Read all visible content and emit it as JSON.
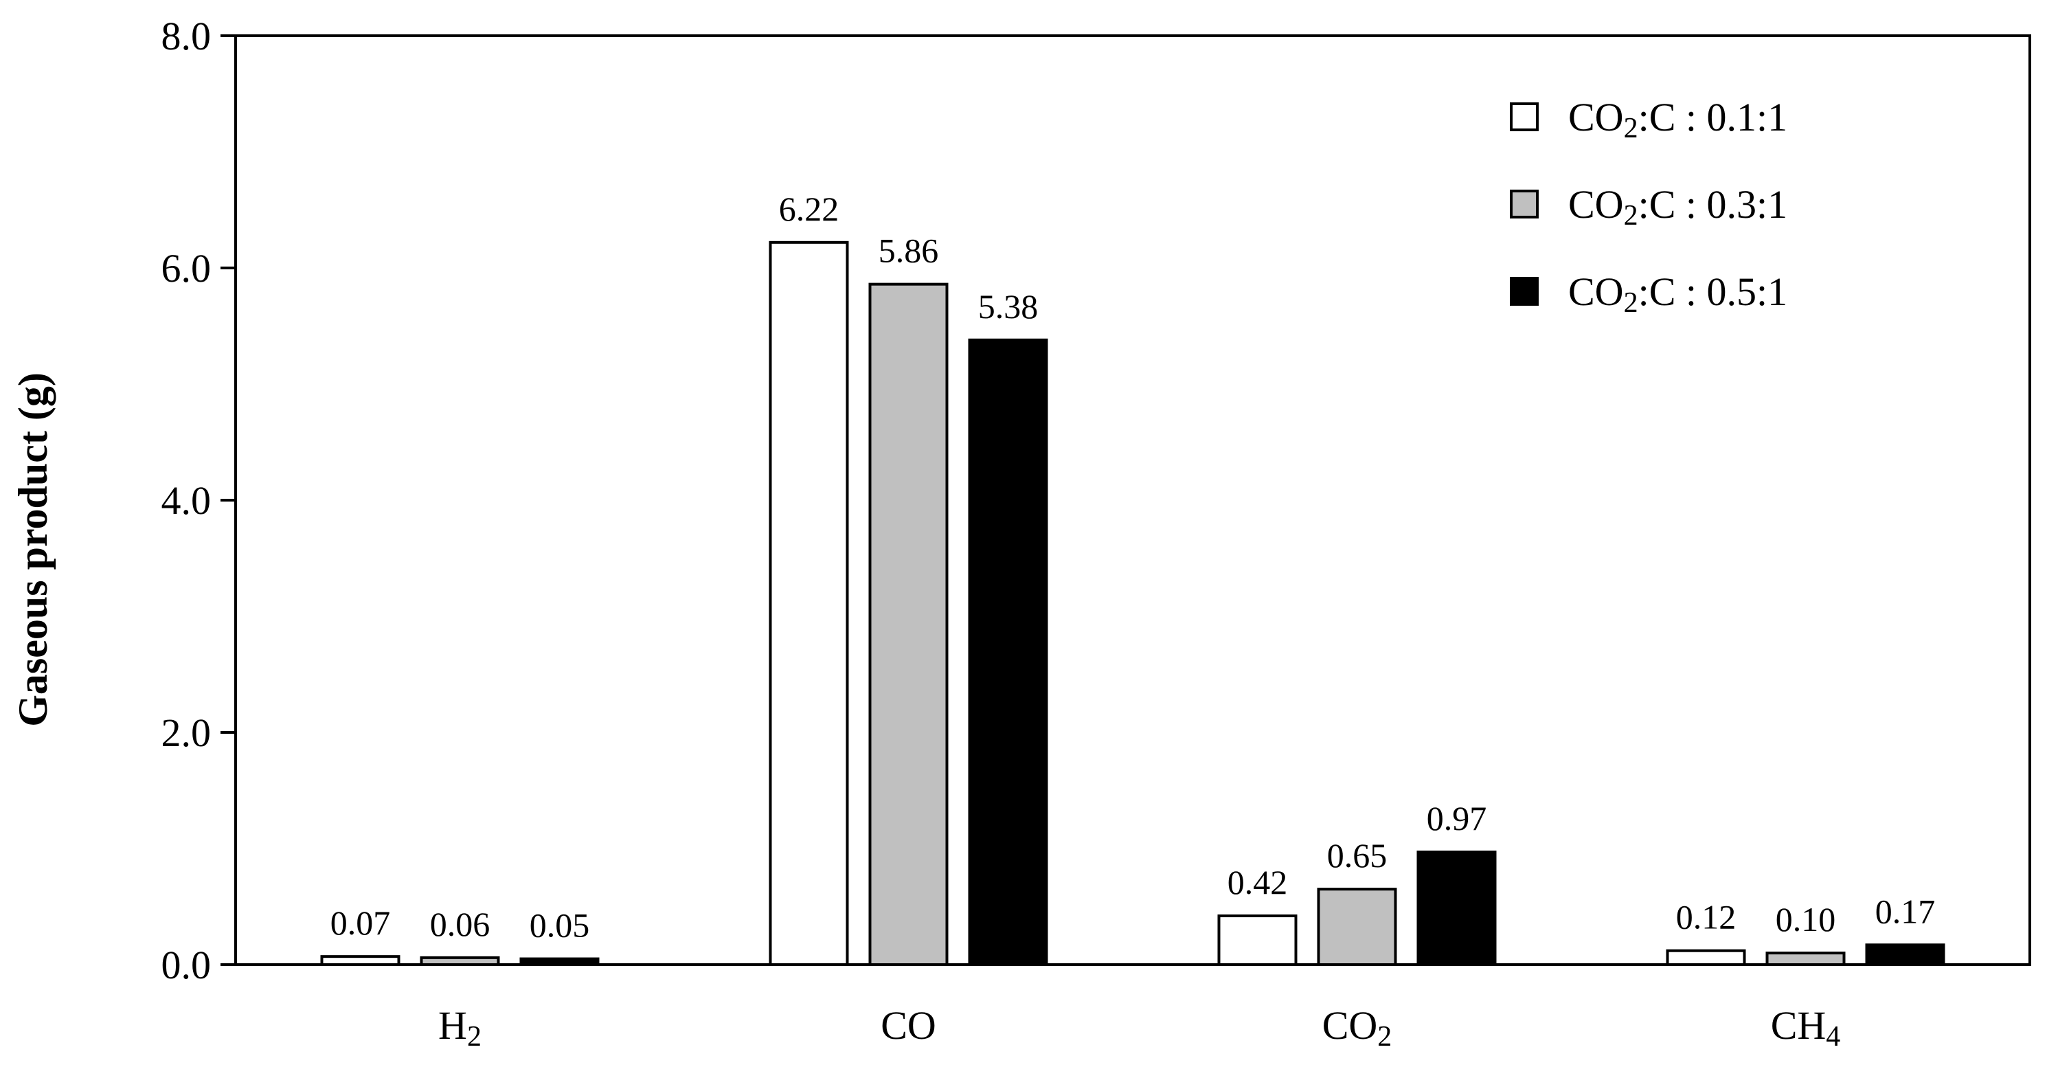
{
  "chart_data": {
    "type": "bar",
    "ylabel": "Gaseous product (g)",
    "xlabel": "",
    "ylim": [
      0.0,
      8.0
    ],
    "yticks": [
      "0.0",
      "2.0",
      "4.0",
      "6.0",
      "8.0"
    ],
    "categories": [
      {
        "base": "H",
        "sub": "2"
      },
      {
        "base": "CO",
        "sub": ""
      },
      {
        "base": "CO",
        "sub": "2"
      },
      {
        "base": "CH",
        "sub": "4"
      }
    ],
    "series": [
      {
        "name": {
          "pre": "CO",
          "sub": "2",
          "post": ":C : 0.1:1"
        },
        "color": "#ffffff",
        "values": [
          0.07,
          6.22,
          0.42,
          0.12
        ],
        "labels": [
          "0.07",
          "6.22",
          "0.42",
          "0.12"
        ]
      },
      {
        "name": {
          "pre": "CO",
          "sub": "2",
          "post": ":C : 0.3:1"
        },
        "color": "#c0c0c0",
        "values": [
          0.06,
          5.86,
          0.65,
          0.1
        ],
        "labels": [
          "0.06",
          "5.86",
          "0.65",
          "0.10"
        ]
      },
      {
        "name": {
          "pre": "CO",
          "sub": "2",
          "post": ":C : 0.5:1"
        },
        "color": "#000000",
        "values": [
          0.05,
          5.38,
          0.97,
          0.17
        ],
        "labels": [
          "0.05",
          "5.38",
          "0.97",
          "0.17"
        ]
      }
    ],
    "grid": false,
    "legend_position": "top-right"
  }
}
